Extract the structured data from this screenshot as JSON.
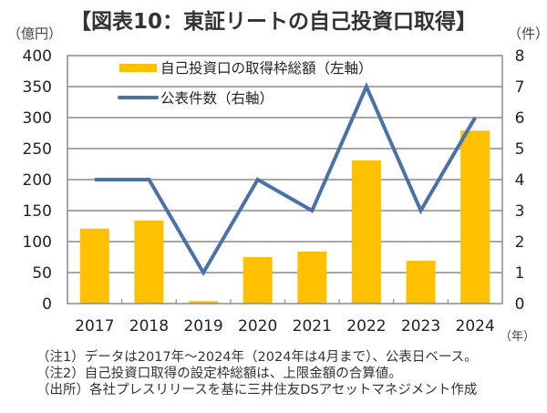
{
  "title": "【図表10：東証リートの自己投資口取得】",
  "units": {
    "left": "（億円）",
    "right": "（件）",
    "x": "（年）"
  },
  "colors": {
    "bar": "#FFC000",
    "line": "#4A72A8",
    "grid": "#8C8C8C",
    "axis_text": "#222222"
  },
  "chart_data": {
    "type": "bar+line",
    "title": "【図表10：東証リートの自己投資口取得】",
    "categories": [
      "2017",
      "2018",
      "2019",
      "2020",
      "2021",
      "2022",
      "2023",
      "2024"
    ],
    "series": [
      {
        "name": "自己投資口の取得枠総額（左軸）",
        "type": "bar",
        "axis": "left",
        "values": [
          121,
          134,
          4,
          75,
          84,
          231,
          69,
          279
        ]
      },
      {
        "name": "公表件数（右軸）",
        "type": "line",
        "axis": "right",
        "values": [
          4,
          4,
          1,
          4,
          3,
          7,
          3,
          6
        ]
      }
    ],
    "y_left": {
      "label": "（億円）",
      "range": [
        0,
        400
      ],
      "ticks": [
        "0",
        "50",
        "100",
        "150",
        "200",
        "250",
        "300",
        "350",
        "400"
      ]
    },
    "y_right": {
      "label": "（件）",
      "range": [
        0,
        8
      ],
      "ticks": [
        "0",
        "1",
        "2",
        "3",
        "4",
        "5",
        "6",
        "7",
        "8"
      ]
    },
    "xlabel": "（年）",
    "grid": true,
    "legend": "top-left"
  },
  "notes": [
    "（注1）データは2017年～2024年（2024年は4月まで）、公表日ベース。",
    "（注2）自己投資口取得の設定枠総額は、上限金額の合算値。",
    "（出所）各社プレスリリースを基に三井住友DSアセットマネジメント作成"
  ]
}
